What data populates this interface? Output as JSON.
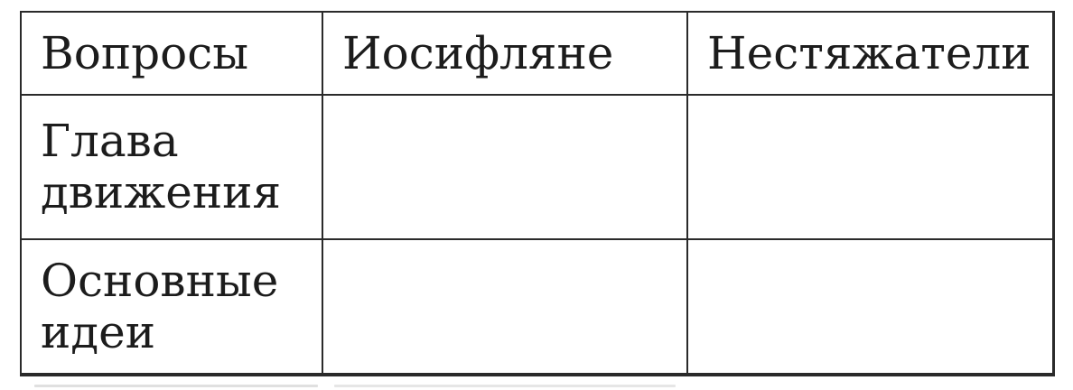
{
  "table": {
    "headers": [
      {
        "label": "Вопросы"
      },
      {
        "label": "Иосифляне"
      },
      {
        "label": "Нестяжатели"
      }
    ],
    "rows": [
      {
        "question": "Глава движения",
        "iosiflyane": "",
        "nestyazhateli": ""
      },
      {
        "question": "Основные идеи",
        "iosiflyane": "",
        "nestyazhateli": ""
      }
    ]
  },
  "colors": {
    "text": "#1c1c1c",
    "border": "#2a2a2a",
    "background": "#ffffff"
  }
}
